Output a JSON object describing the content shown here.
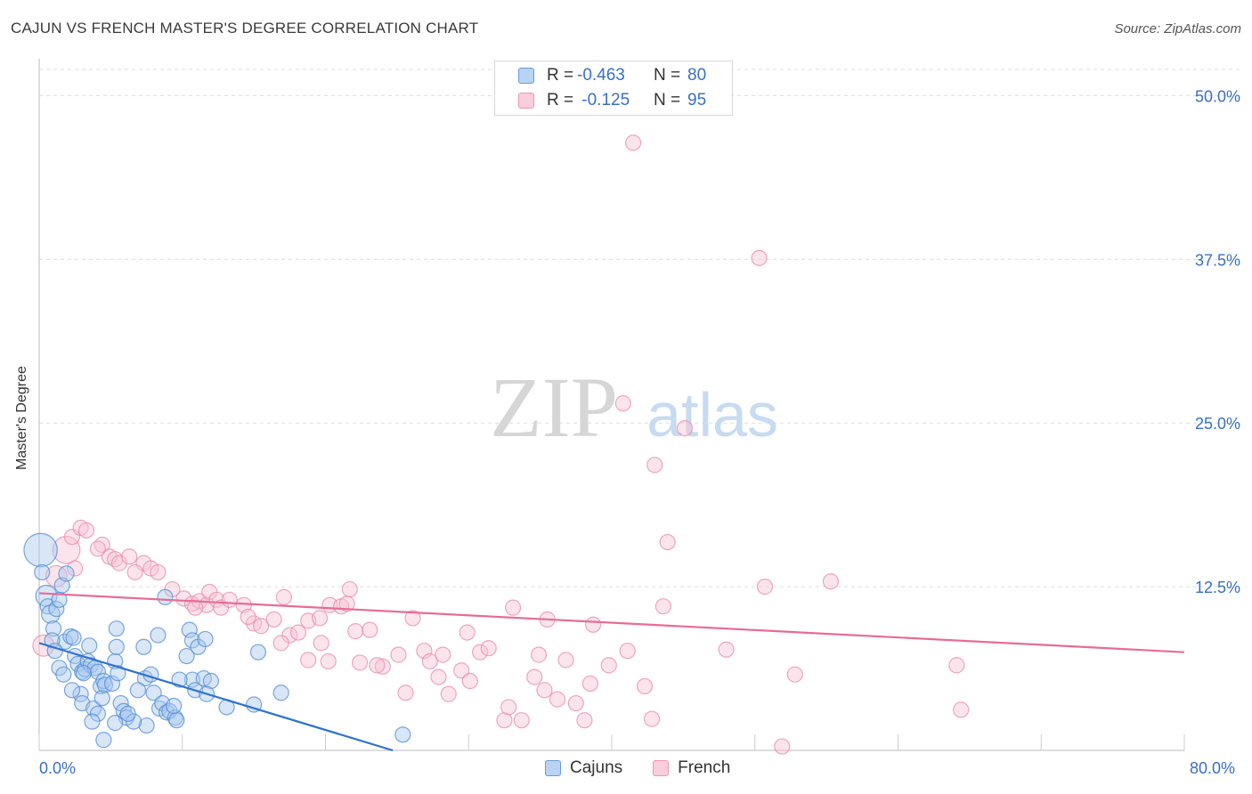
{
  "header": {
    "title": "CAJUN VS FRENCH MASTER'S DEGREE CORRELATION CHART",
    "source": "Source: ZipAtlas.com"
  },
  "watermark": {
    "zip": "ZIP",
    "atlas": "atlas"
  },
  "legend_top": {
    "rows": [
      {
        "r_label": "R =",
        "r_value": "-0.463",
        "n_label": "N =",
        "n_value": "80",
        "color": "#8ab4e8"
      },
      {
        "r_label": "R =",
        "r_value": " -0.125",
        "n_label": "N =",
        "n_value": "95",
        "color": "#f4a8c0"
      }
    ]
  },
  "legend_bottom": {
    "items": [
      "Cajuns",
      "French"
    ]
  },
  "axis": {
    "ylabel": "Master's Degree",
    "x_min_label": "0.0%",
    "x_max_label": "80.0%"
  },
  "colors": {
    "cajun_fill": "#a9c8ef",
    "cajun_stroke": "#4f8bd6",
    "cajun_line": "#2f72cf",
    "french_fill": "#f8c3d4",
    "french_stroke": "#e98aa9",
    "french_line": "#e66c95",
    "tick_text": "#3a6fc4",
    "grid": "#dddddd"
  },
  "chart_data": {
    "type": "scatter",
    "title": "CAJUN VS FRENCH MASTER'S DEGREE CORRELATION CHART",
    "xlabel": "",
    "ylabel": "Master's Degree",
    "xlim": [
      0,
      80
    ],
    "ylim": [
      0,
      52
    ],
    "y_ticks": [
      12.5,
      25.0,
      37.5,
      50.0
    ],
    "y_tick_labels": [
      "12.5%",
      "25.0%",
      "37.5%",
      "50.0%"
    ],
    "x_tick_labels": [
      "0.0%",
      "80.0%"
    ],
    "grid": true,
    "legend_position": "top-center",
    "series": [
      {
        "name": "Cajuns",
        "r": -0.463,
        "n": 80,
        "trend": {
          "x": [
            0,
            24.7
          ],
          "y": [
            8.2,
            0.0
          ]
        },
        "points": [
          [
            0.1,
            15.3,
            2.2
          ],
          [
            0.2,
            13.6,
            1
          ],
          [
            0.5,
            11.8,
            1.4
          ],
          [
            0.6,
            11.0,
            1
          ],
          [
            0.8,
            10.4,
            1.2
          ],
          [
            1.0,
            9.3,
            1
          ],
          [
            1.2,
            10.8,
            1
          ],
          [
            1.4,
            11.5,
            1
          ],
          [
            1.6,
            12.6,
            1
          ],
          [
            1.9,
            13.5,
            1
          ],
          [
            1.8,
            8.3,
            1
          ],
          [
            2.2,
            8.7,
            1
          ],
          [
            2.4,
            8.6,
            1
          ],
          [
            2.5,
            7.2,
            1
          ],
          [
            1.4,
            6.3,
            1
          ],
          [
            1.7,
            5.8,
            1
          ],
          [
            2.7,
            6.6,
            1
          ],
          [
            3.0,
            6.0,
            1
          ],
          [
            3.2,
            6.2,
            1
          ],
          [
            3.4,
            6.8,
            1
          ],
          [
            3.6,
            6.5,
            1
          ],
          [
            3.5,
            8.0,
            1
          ],
          [
            3.9,
            6.3,
            1
          ],
          [
            4.1,
            6.0,
            1
          ],
          [
            4.3,
            4.9,
            1
          ],
          [
            4.5,
            5.3,
            1
          ],
          [
            2.9,
            4.3,
            1
          ],
          [
            3.0,
            3.6,
            1
          ],
          [
            3.8,
            3.2,
            1
          ],
          [
            4.1,
            2.8,
            1
          ],
          [
            4.4,
            4.0,
            1
          ],
          [
            4.6,
            5.0,
            1
          ],
          [
            5.1,
            5.1,
            1
          ],
          [
            5.3,
            6.8,
            1
          ],
          [
            5.5,
            5.9,
            1
          ],
          [
            5.7,
            3.6,
            1
          ],
          [
            5.9,
            3.0,
            1
          ],
          [
            6.1,
            2.5,
            1
          ],
          [
            5.3,
            2.1,
            1
          ],
          [
            3.7,
            2.2,
            1
          ],
          [
            4.5,
            0.8,
            1
          ],
          [
            5.4,
            9.3,
            1
          ],
          [
            5.4,
            7.9,
            1
          ],
          [
            7.3,
            7.9,
            1
          ],
          [
            7.4,
            5.5,
            1
          ],
          [
            7.8,
            5.8,
            1
          ],
          [
            8.0,
            4.4,
            1
          ],
          [
            8.4,
            3.2,
            1
          ],
          [
            8.6,
            3.6,
            1
          ],
          [
            8.9,
            2.9,
            1
          ],
          [
            9.1,
            3.0,
            1
          ],
          [
            8.3,
            8.8,
            1
          ],
          [
            7.5,
            1.9,
            1
          ],
          [
            6.6,
            2.2,
            1
          ],
          [
            8.8,
            11.7,
            1
          ],
          [
            10.5,
            9.2,
            1
          ],
          [
            10.7,
            8.4,
            1
          ],
          [
            11.1,
            7.9,
            1
          ],
          [
            11.6,
            8.5,
            1
          ],
          [
            10.3,
            7.2,
            1
          ],
          [
            10.7,
            5.4,
            1
          ],
          [
            10.9,
            4.6,
            1
          ],
          [
            11.5,
            5.5,
            1
          ],
          [
            12.0,
            5.3,
            1
          ],
          [
            11.7,
            4.3,
            1
          ],
          [
            9.5,
            2.5,
            1
          ],
          [
            9.6,
            2.3,
            1
          ],
          [
            9.4,
            3.4,
            1
          ],
          [
            13.1,
            3.3,
            1
          ],
          [
            15.0,
            3.5,
            1
          ],
          [
            16.9,
            4.4,
            1
          ],
          [
            15.3,
            7.5,
            1
          ],
          [
            25.4,
            1.2,
            1
          ],
          [
            9.8,
            5.4,
            1
          ],
          [
            6.9,
            4.6,
            1
          ],
          [
            6.2,
            2.8,
            1
          ],
          [
            3.1,
            5.9,
            1
          ],
          [
            2.3,
            4.6,
            1
          ],
          [
            0.9,
            8.4,
            1
          ],
          [
            1.1,
            7.6,
            1
          ]
        ]
      },
      {
        "name": "French",
        "r": -0.125,
        "n": 95,
        "trend": {
          "x": [
            0,
            80
          ],
          "y": [
            12.0,
            7.5
          ]
        },
        "points": [
          [
            0.3,
            8.0,
            1.4
          ],
          [
            1.2,
            13.3,
            1.4
          ],
          [
            1.9,
            15.3,
            1.8
          ],
          [
            2.3,
            16.3,
            1
          ],
          [
            2.9,
            17.0,
            1
          ],
          [
            3.3,
            16.8,
            1
          ],
          [
            4.4,
            15.7,
            1
          ],
          [
            4.9,
            14.8,
            1
          ],
          [
            5.3,
            14.6,
            1
          ],
          [
            5.6,
            14.3,
            1
          ],
          [
            6.3,
            14.8,
            1
          ],
          [
            7.3,
            14.3,
            1
          ],
          [
            7.8,
            13.9,
            1
          ],
          [
            8.3,
            13.6,
            1
          ],
          [
            9.3,
            12.3,
            1
          ],
          [
            10.1,
            11.6,
            1
          ],
          [
            10.7,
            11.2,
            1
          ],
          [
            11.2,
            11.4,
            1
          ],
          [
            11.7,
            11.1,
            1
          ],
          [
            11.9,
            12.1,
            1
          ],
          [
            12.4,
            11.5,
            1
          ],
          [
            12.7,
            10.9,
            1
          ],
          [
            13.3,
            11.5,
            1
          ],
          [
            14.3,
            11.1,
            1
          ],
          [
            15.0,
            9.7,
            1
          ],
          [
            15.5,
            9.5,
            1
          ],
          [
            16.4,
            10.0,
            1
          ],
          [
            17.1,
            11.7,
            1
          ],
          [
            17.5,
            8.8,
            1
          ],
          [
            18.1,
            9.0,
            1
          ],
          [
            18.8,
            9.9,
            1
          ],
          [
            19.6,
            10.1,
            1
          ],
          [
            20.3,
            11.1,
            1
          ],
          [
            21.1,
            11.0,
            1
          ],
          [
            21.5,
            11.2,
            1
          ],
          [
            21.7,
            12.3,
            1
          ],
          [
            22.1,
            9.1,
            1
          ],
          [
            23.1,
            9.2,
            1
          ],
          [
            18.8,
            6.9,
            1
          ],
          [
            20.2,
            6.8,
            1
          ],
          [
            22.4,
            6.7,
            1
          ],
          [
            24.0,
            6.4,
            1
          ],
          [
            25.1,
            7.3,
            1
          ],
          [
            25.6,
            4.4,
            1
          ],
          [
            26.1,
            10.1,
            1
          ],
          [
            26.9,
            7.6,
            1
          ],
          [
            27.3,
            6.8,
            1
          ],
          [
            27.9,
            5.6,
            1
          ],
          [
            28.2,
            7.3,
            1
          ],
          [
            28.6,
            4.3,
            1
          ],
          [
            29.5,
            6.1,
            1
          ],
          [
            29.9,
            9.0,
            1
          ],
          [
            30.1,
            5.3,
            1
          ],
          [
            30.8,
            7.5,
            1
          ],
          [
            31.4,
            7.8,
            1
          ],
          [
            32.5,
            2.3,
            1
          ],
          [
            32.8,
            3.3,
            1
          ],
          [
            33.1,
            10.9,
            1
          ],
          [
            33.7,
            2.3,
            1
          ],
          [
            34.6,
            5.6,
            1
          ],
          [
            34.9,
            7.3,
            1
          ],
          [
            35.3,
            4.6,
            1
          ],
          [
            35.5,
            10.0,
            1
          ],
          [
            36.2,
            3.9,
            1
          ],
          [
            36.8,
            6.9,
            1
          ],
          [
            37.5,
            3.6,
            1
          ],
          [
            38.1,
            2.3,
            1
          ],
          [
            38.5,
            5.1,
            1
          ],
          [
            38.7,
            9.6,
            1
          ],
          [
            39.8,
            6.5,
            1
          ],
          [
            40.8,
            26.5,
            1
          ],
          [
            41.1,
            7.6,
            1
          ],
          [
            41.5,
            46.4,
            1
          ],
          [
            42.3,
            4.9,
            1
          ],
          [
            42.8,
            2.4,
            1
          ],
          [
            43.0,
            21.8,
            1
          ],
          [
            43.6,
            11.0,
            1
          ],
          [
            43.9,
            15.9,
            1
          ],
          [
            45.1,
            24.6,
            1
          ],
          [
            48.0,
            7.7,
            1
          ],
          [
            50.3,
            37.6,
            1
          ],
          [
            50.7,
            12.5,
            1
          ],
          [
            51.9,
            0.3,
            1
          ],
          [
            52.8,
            5.8,
            1
          ],
          [
            55.3,
            12.9,
            1
          ],
          [
            64.1,
            6.5,
            1
          ],
          [
            64.4,
            3.1,
            1
          ],
          [
            2.5,
            13.9,
            1
          ],
          [
            4.1,
            15.4,
            1
          ],
          [
            6.7,
            13.6,
            1
          ],
          [
            10.9,
            10.9,
            1
          ],
          [
            14.6,
            10.2,
            1
          ],
          [
            16.9,
            8.2,
            1
          ],
          [
            19.7,
            8.2,
            1
          ],
          [
            23.6,
            6.5,
            1
          ]
        ]
      }
    ]
  }
}
